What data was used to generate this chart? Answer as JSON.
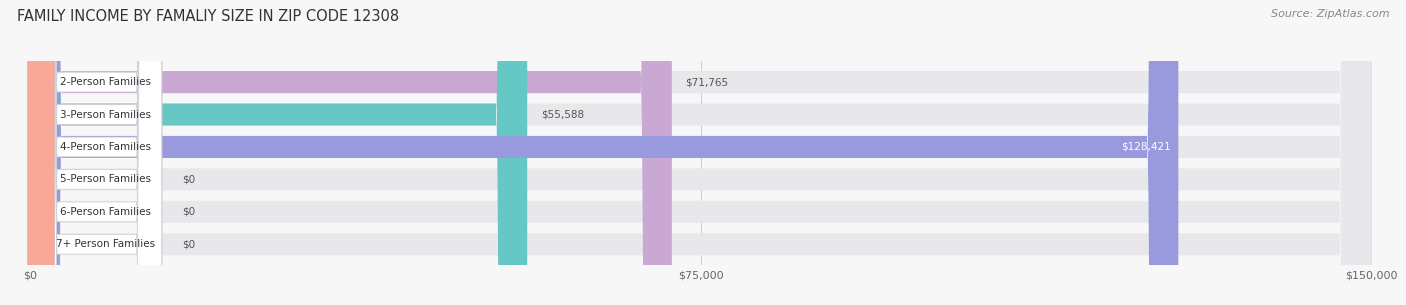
{
  "title": "FAMILY INCOME BY FAMALIY SIZE IN ZIP CODE 12308",
  "source": "Source: ZipAtlas.com",
  "categories": [
    "2-Person Families",
    "3-Person Families",
    "4-Person Families",
    "5-Person Families",
    "6-Person Families",
    "7+ Person Families"
  ],
  "values": [
    71765,
    55588,
    128421,
    0,
    0,
    0
  ],
  "bar_colors": [
    "#c9a8d4",
    "#66c8c4",
    "#9999dd",
    "#f9a0b4",
    "#f8c89a",
    "#f9a898"
  ],
  "dot_colors": [
    "#c9a8d4",
    "#66c8c4",
    "#8888cc",
    "#f9a0b4",
    "#f8c89a",
    "#f9a898"
  ],
  "value_labels": [
    "$71,765",
    "$55,588",
    "$128,421",
    "$0",
    "$0",
    "$0"
  ],
  "xlim": [
    0,
    150000
  ],
  "xticks": [
    0,
    75000,
    150000
  ],
  "xtick_labels": [
    "$0",
    "$75,000",
    "$150,000"
  ],
  "background_color": "#f7f7f7",
  "bar_bg_color": "#e8e8ec",
  "title_fontsize": 10.5,
  "source_fontsize": 8,
  "label_fontsize": 7.5,
  "value_fontsize": 7.5,
  "tick_fontsize": 8
}
